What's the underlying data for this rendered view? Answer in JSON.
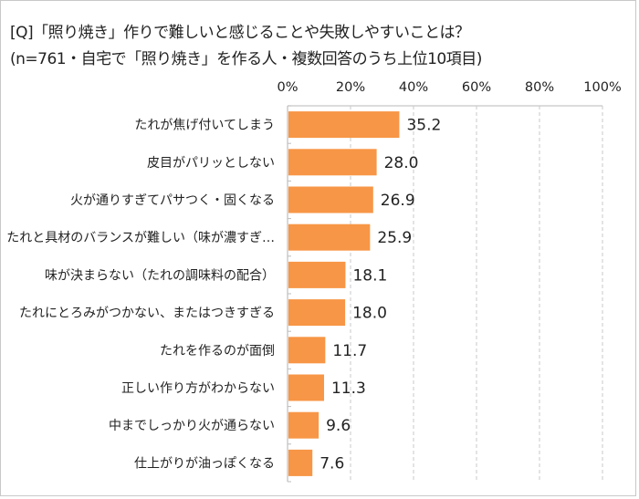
{
  "header": {
    "question": "[Q]「照り焼き」作りで難しいと感じることや失敗しやすいことは？",
    "subtitle": "(n=761・自宅で「照り焼き」を作る人・複数回答のうち上位10項目)"
  },
  "chart_data": {
    "type": "bar",
    "orientation": "horizontal",
    "title": "[Q]「照り焼き」作りで難しいと感じることや失敗しやすいことは？",
    "subtitle": "(n=761・自宅で「照り焼き」を作る人・複数回答のうち上位10項目)",
    "categories": [
      "たれが焦げ付いてしまう",
      "皮目がパリッとしない",
      "火が通りすぎてパサつく・固くなる",
      "たれと具材のバランスが難しい（味が濃すぎ…",
      "味が決まらない（たれの調味料の配合）",
      "たれにとろみがつかない、またはつきすぎる",
      "たれを作るのが面倒",
      "正しい作り方がわからない",
      "中までしっかり火が通らない",
      "仕上がりが油っぽくなる"
    ],
    "values": [
      35.2,
      28.0,
      26.9,
      25.9,
      18.1,
      18.0,
      11.7,
      11.3,
      9.6,
      7.6
    ],
    "value_labels": [
      "35.2",
      "28.0",
      "26.9",
      "25.9",
      "18.1",
      "18.0",
      "11.7",
      "11.3",
      "9.6",
      "7.6"
    ],
    "xlabel": "",
    "ylabel": "",
    "xlim": [
      0,
      100
    ],
    "xticks": [
      0,
      20,
      40,
      60,
      80,
      100
    ],
    "xtick_labels": [
      "0%",
      "20%",
      "40%",
      "60%",
      "80%",
      "100%"
    ],
    "xaxis_position": "top",
    "grid": true,
    "grid_style": "dashed-vertical",
    "legend": "none",
    "bar_color": "#f79646"
  }
}
